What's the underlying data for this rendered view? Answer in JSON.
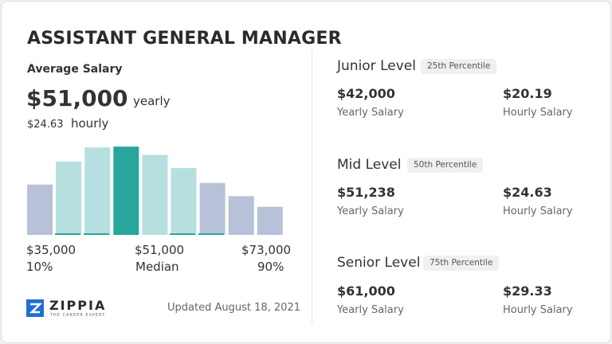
{
  "header": {
    "title": "ASSISTANT GENERAL MANAGER"
  },
  "average": {
    "label": "Average Salary",
    "yearly_amount": "$51,000",
    "yearly_unit": "yearly",
    "hourly_amount": "$24.63",
    "hourly_unit": "hourly"
  },
  "chart_data": {
    "type": "bar",
    "values": [
      61,
      89,
      106,
      107,
      97,
      81,
      63,
      47,
      34
    ],
    "colors": [
      "#b7c1d7",
      "#b6e0df",
      "#b6e0df",
      "#27a79b",
      "#b6e0df",
      "#b6e0df",
      "#b7c1d7",
      "#b7c1d7",
      "#b7c1d7"
    ],
    "ylim": [
      0,
      110
    ]
  },
  "scale": {
    "low": "$35,000",
    "median": "$51,000",
    "high": "$73,000",
    "low_pct": "10%",
    "median_label": "Median",
    "high_pct": "90%"
  },
  "footer": {
    "brand": "ZIPPIA",
    "tagline": "THE CAREER EXPERT",
    "updated": "Updated August 18, 2021"
  },
  "levels": [
    {
      "name": "Junior Level",
      "percentile": "25th Percentile",
      "yearly": "$42,000",
      "yearly_label": "Yearly Salary",
      "hourly": "$20.19",
      "hourly_label": "Hourly Salary"
    },
    {
      "name": "Mid Level",
      "percentile": "50th Percentile",
      "yearly": "$51,238",
      "yearly_label": "Yearly Salary",
      "hourly": "$24.63",
      "hourly_label": "Hourly Salary"
    },
    {
      "name": "Senior Level",
      "percentile": "75th Percentile",
      "yearly": "$61,000",
      "yearly_label": "Yearly Salary",
      "hourly": "$29.33",
      "hourly_label": "Hourly Salary"
    }
  ]
}
